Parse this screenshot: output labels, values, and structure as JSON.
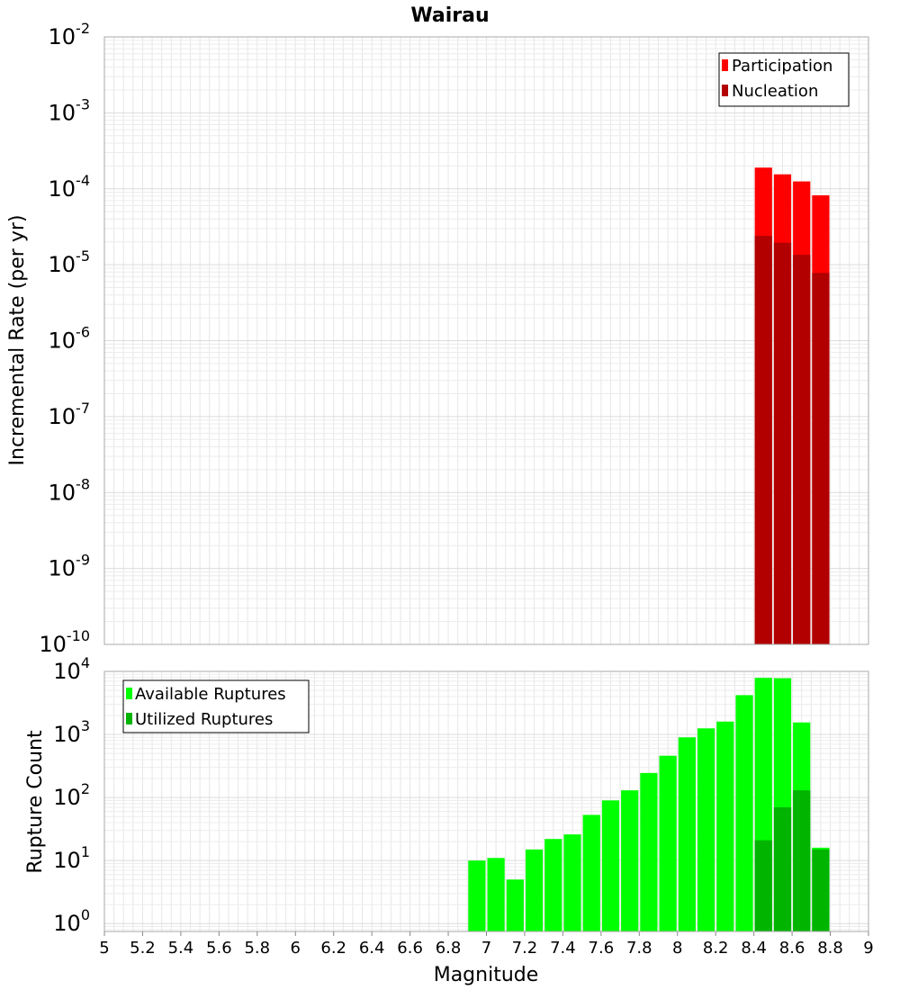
{
  "chart_data": [
    {
      "type": "bar",
      "title": "Wairau",
      "ylabel": "Incremental Rate (per yr)",
      "xlabel": "",
      "yscale": "log",
      "xlim": [
        5,
        9
      ],
      "ylim": [
        1e-10,
        0.01
      ],
      "grid": true,
      "legend_position": "top-right",
      "bar_width": 0.1,
      "series": [
        {
          "name": "Participation",
          "color": "#ff0000",
          "x": [
            8.45,
            8.55,
            8.65,
            8.75
          ],
          "values": [
            0.00019,
            0.000155,
            0.000125,
            8.2e-05
          ]
        },
        {
          "name": "Nucleation",
          "color": "#b20000",
          "x": [
            8.45,
            8.55,
            8.65,
            8.75
          ],
          "values": [
            2.4e-05,
            1.95e-05,
            1.35e-05,
            7.8e-06
          ]
        }
      ]
    },
    {
      "type": "bar",
      "title": "",
      "ylabel": "Rupture Count",
      "xlabel": "Magnitude",
      "yscale": "log",
      "xlim": [
        5,
        9
      ],
      "ylim": [
        0.75,
        10000
      ],
      "grid": true,
      "legend_position": "top-left",
      "bar_width": 0.1,
      "series": [
        {
          "name": "Available Ruptures",
          "color": "#00ff00",
          "x": [
            6.95,
            7.05,
            7.15,
            7.25,
            7.35,
            7.45,
            7.55,
            7.65,
            7.75,
            7.85,
            7.95,
            8.05,
            8.15,
            8.25,
            8.35,
            8.45,
            8.55,
            8.65,
            8.75
          ],
          "values": [
            10,
            11,
            5,
            15,
            22,
            26,
            53,
            90,
            130,
            245,
            460,
            900,
            1250,
            1600,
            4200,
            7900,
            7800,
            1550,
            16
          ]
        },
        {
          "name": "Utilized Ruptures",
          "color": "#00b400",
          "x": [
            8.45,
            8.55,
            8.65,
            8.75
          ],
          "values": [
            21,
            70,
            130,
            15
          ]
        }
      ]
    }
  ],
  "top_axis": {
    "title": "Wairau",
    "ylabel": "Incremental Rate (per yr)",
    "ticks": [
      {
        "base": "10",
        "exp": "-2"
      },
      {
        "base": "10",
        "exp": "-3"
      },
      {
        "base": "10",
        "exp": "-4"
      },
      {
        "base": "10",
        "exp": "-5"
      },
      {
        "base": "10",
        "exp": "-6"
      },
      {
        "base": "10",
        "exp": "-7"
      },
      {
        "base": "10",
        "exp": "-8"
      },
      {
        "base": "10",
        "exp": "-9"
      },
      {
        "base": "10",
        "exp": "-10"
      }
    ],
    "legend": [
      "Participation",
      "Nucleation"
    ]
  },
  "bottom_axis": {
    "ylabel": "Rupture Count",
    "xlabel": "Magnitude",
    "ticks": [
      {
        "base": "10",
        "exp": "4"
      },
      {
        "base": "10",
        "exp": "3"
      },
      {
        "base": "10",
        "exp": "2"
      },
      {
        "base": "10",
        "exp": "1"
      },
      {
        "base": "10",
        "exp": "0"
      }
    ],
    "legend": [
      "Available Ruptures",
      "Utilized Ruptures"
    ],
    "x_ticks": [
      "5",
      "5.2",
      "5.4",
      "5.6",
      "5.8",
      "6",
      "6.2",
      "6.4",
      "6.6",
      "6.8",
      "7",
      "7.2",
      "7.4",
      "7.6",
      "7.8",
      "8",
      "8.2",
      "8.4",
      "8.6",
      "8.8",
      "9"
    ]
  }
}
